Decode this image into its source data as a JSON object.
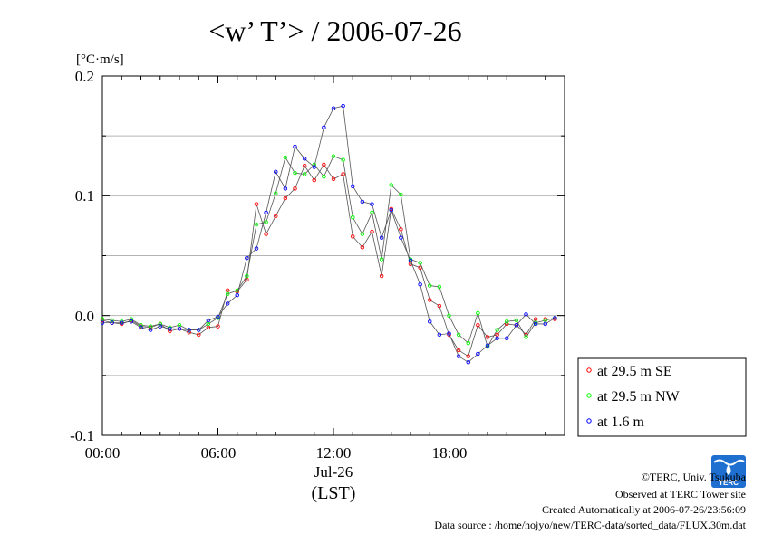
{
  "chart_data": {
    "type": "line",
    "title": "<w’ T’> / 2006-07-26",
    "ylabel": "[°C·m/s]",
    "xlabel": "(LST)",
    "date_label": "Jul-26",
    "x_tick_labels": [
      "00:00",
      "06:00",
      "12:00",
      "18:00"
    ],
    "y_tick_labels": [
      "0.2",
      "0.1",
      "0.0",
      "-0.1"
    ],
    "ylim": [
      -0.1,
      0.2
    ],
    "xlim_hours": [
      0,
      24
    ],
    "grid": true,
    "legend_position": "lower-right outside",
    "x_hours": [
      0,
      0.5,
      1,
      1.5,
      2,
      2.5,
      3,
      3.5,
      4,
      4.5,
      5,
      5.5,
      6,
      6.5,
      7,
      7.5,
      8,
      8.5,
      9,
      9.5,
      10,
      10.5,
      11,
      11.5,
      12,
      12.5,
      13,
      13.5,
      14,
      14.5,
      15,
      15.5,
      16,
      16.5,
      17,
      17.5,
      18,
      18.5,
      19,
      19.5,
      20,
      20.5,
      21,
      21.5,
      22,
      22.5,
      23,
      23.5
    ],
    "series": [
      {
        "name": "at 29.5 m SE",
        "color": "#ff0000",
        "values": [
          -0.004,
          -0.006,
          -0.007,
          -0.004,
          -0.009,
          -0.01,
          -0.007,
          -0.013,
          -0.011,
          -0.014,
          -0.016,
          -0.01,
          -0.009,
          0.021,
          0.02,
          0.03,
          0.093,
          0.068,
          0.083,
          0.098,
          0.106,
          0.125,
          0.113,
          0.126,
          0.114,
          0.118,
          0.066,
          0.057,
          0.07,
          0.033,
          0.089,
          0.072,
          0.043,
          0.04,
          0.013,
          0.008,
          -0.016,
          -0.029,
          -0.034,
          -0.008,
          -0.018,
          -0.016,
          -0.007,
          -0.008,
          -0.016,
          -0.003,
          -0.003,
          -0.003
        ]
      },
      {
        "name": "at 29.5 m NW",
        "color": "#00ff00",
        "values": [
          -0.003,
          -0.004,
          -0.005,
          -0.003,
          -0.008,
          -0.009,
          -0.007,
          -0.01,
          -0.008,
          -0.012,
          -0.012,
          -0.007,
          -0.002,
          0.018,
          0.021,
          0.033,
          0.076,
          0.078,
          0.102,
          0.132,
          0.119,
          0.118,
          0.126,
          0.116,
          0.133,
          0.13,
          0.082,
          0.068,
          0.086,
          0.047,
          0.109,
          0.101,
          0.047,
          0.044,
          0.025,
          0.024,
          0.0,
          -0.016,
          -0.023,
          0.002,
          -0.026,
          -0.012,
          -0.005,
          -0.004,
          -0.018,
          -0.006,
          -0.004,
          -0.002
        ]
      },
      {
        "name": "at 1.6 m",
        "color": "#0000ff",
        "values": [
          -0.006,
          -0.006,
          -0.006,
          -0.005,
          -0.01,
          -0.012,
          -0.009,
          -0.011,
          -0.011,
          -0.012,
          -0.012,
          -0.004,
          -0.001,
          0.01,
          0.017,
          0.048,
          0.056,
          0.086,
          0.12,
          0.106,
          0.141,
          0.131,
          0.124,
          0.157,
          0.173,
          0.175,
          0.108,
          0.095,
          0.093,
          0.065,
          0.088,
          0.065,
          0.046,
          0.026,
          -0.005,
          -0.016,
          -0.015,
          -0.034,
          -0.039,
          -0.032,
          -0.025,
          -0.019,
          -0.019,
          -0.008,
          0.001,
          -0.007,
          -0.007,
          -0.002
        ]
      }
    ]
  },
  "credits": {
    "copyright": "©TERC, Univ. Tsukuba",
    "observed": "Observed at TERC Tower site",
    "created": "Created Automatically at 2006-07-26/23:56:09",
    "source": "Data source : /home/hojyo/new/TERC-data/sorted_data/FLUX.30m.dat",
    "logo_text": "TERC"
  }
}
